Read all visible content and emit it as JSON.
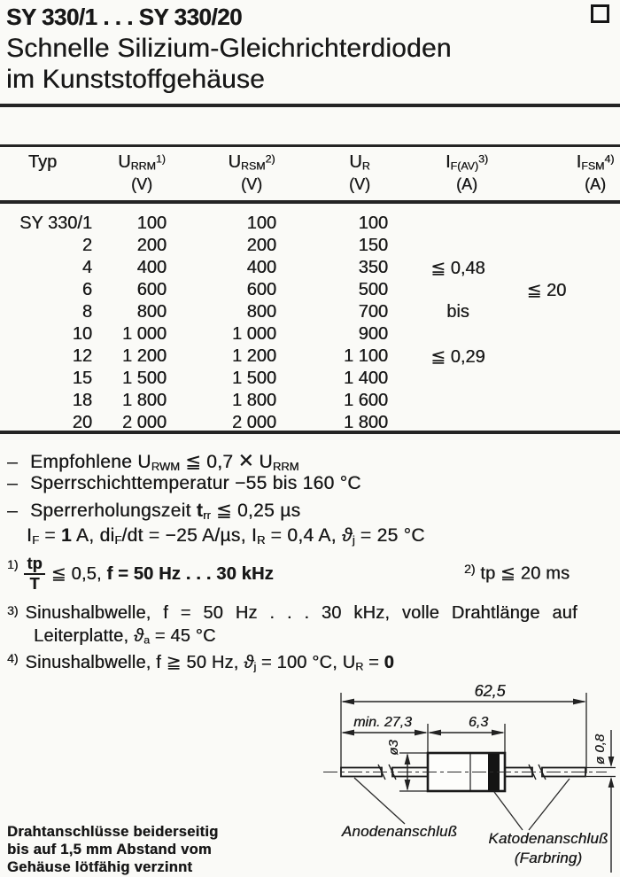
{
  "header": {
    "title": "SY 330/1 . . . SY 330/20",
    "subtitle1": "Schnelle Silizium-Gleichrichterdioden",
    "subtitle2": "im Kunststoffgehäuse"
  },
  "table": {
    "headers": [
      {
        "base": "Typ",
        "sub": "",
        "sup": "",
        "unit": ""
      },
      {
        "base": "U",
        "sub": "RRM",
        "sup": "1)",
        "unit": "(V)"
      },
      {
        "base": "U",
        "sub": "RSM",
        "sup": "2)",
        "unit": "(V)"
      },
      {
        "base": "U",
        "sub": "R",
        "sup": "",
        "unit": "(V)"
      },
      {
        "base": "I",
        "sub": "F(AV)",
        "sup": "3)",
        "unit": "(A)"
      },
      {
        "base": "I",
        "sub": "FSM",
        "sup": "4)",
        "unit": "(A)"
      }
    ],
    "rows": [
      [
        "SY 330/1",
        "100",
        "100",
        "100",
        "",
        ""
      ],
      [
        "2",
        "200",
        "200",
        "150",
        "",
        ""
      ],
      [
        "4",
        "400",
        "400",
        "350",
        "≦ 0,48",
        ""
      ],
      [
        "6",
        "600",
        "600",
        "500",
        "",
        "≦ 20"
      ],
      [
        "8",
        "800",
        "800",
        "700",
        "bis",
        ""
      ],
      [
        "10",
        "1 000",
        "1 000",
        "900",
        "",
        ""
      ],
      [
        "12",
        "1 200",
        "1 200",
        "1 100",
        "≦ 0,29",
        ""
      ],
      [
        "15",
        "1 500",
        "1 500",
        "1 400",
        "",
        ""
      ],
      [
        "18",
        "1 800",
        "1 800",
        "1 600",
        "",
        ""
      ],
      [
        "20",
        "2 000",
        "2 000",
        "1 800",
        "",
        ""
      ]
    ]
  },
  "notes": [
    {
      "dash": "–",
      "segments": [
        {
          "t": "Empfohlene U"
        },
        {
          "t": "RWM",
          "s": "sub"
        },
        {
          "t": " ≦ 0,7 "
        },
        {
          "t": "×",
          "s": "big"
        },
        {
          "t": " U"
        },
        {
          "t": "RRM",
          "s": "sub"
        }
      ]
    },
    {
      "dash": "–",
      "segments": [
        {
          "t": "Sperrschichttemperatur −55 bis 160 °C"
        }
      ]
    },
    {
      "dash": "–",
      "segments": [
        {
          "t": "Sperrerholungszeit "
        },
        {
          "t": "t",
          "s": "b"
        },
        {
          "t": "rr",
          "s": "sub"
        },
        {
          "t": " ≦ 0,25 µs"
        }
      ]
    },
    {
      "dash": "",
      "segments": [
        {
          "t": "I"
        },
        {
          "t": "F",
          "s": "sub"
        },
        {
          "t": " = "
        },
        {
          "t": "1",
          "s": "b"
        },
        {
          "t": " A, di"
        },
        {
          "t": "F",
          "s": "sub"
        },
        {
          "t": "/dt = −25 A/µs, I"
        },
        {
          "t": "R",
          "s": "sub"
        },
        {
          "t": " = 0,4 A, "
        },
        {
          "t": "ϑ",
          "s": "i"
        },
        {
          "t": "j",
          "s": "sub"
        },
        {
          "t": " = 25 °C"
        }
      ]
    }
  ],
  "footnotes": {
    "f1": {
      "sup": "1)",
      "frac_top": "tp",
      "frac_bot": "T",
      "segments": [
        {
          "t": " ≦ 0,5, "
        },
        {
          "t": "f = 50 Hz . . . 30 kHz",
          "s": "b"
        }
      ]
    },
    "f2": {
      "sup": "2)",
      "segments": [
        {
          "t": "tp ≦ 20 ms"
        }
      ]
    },
    "f3": {
      "sup": "3)",
      "line1": [
        {
          "t": "Sinushalbwelle, f = 50 Hz . . . 30 kHz, volle Drahtlänge auf"
        }
      ],
      "line2": [
        {
          "t": "Leiterplatte, "
        },
        {
          "t": "ϑ",
          "s": "i"
        },
        {
          "t": "a",
          "s": "sub"
        },
        {
          "t": " = 45 °C"
        }
      ]
    },
    "f4": {
      "sup": "4)",
      "segments": [
        {
          "t": "Sinushalbwelle, f ≧ 50 Hz, "
        },
        {
          "t": "ϑ",
          "s": "i"
        },
        {
          "t": "j",
          "s": "sub"
        },
        {
          "t": " = 100 °C, U"
        },
        {
          "t": "R",
          "s": "sub"
        },
        {
          "t": " = "
        },
        {
          "t": "0",
          "s": "b"
        }
      ]
    }
  },
  "diagram": {
    "dim_overall": "62,5",
    "dim_lead": "min. 27,3",
    "dim_body": "6,3",
    "dim_body_dia": "ø3",
    "dim_wire_dia": "ø 0,8",
    "label_anode": "Anodenanschluß",
    "label_cathode": "Katodenanschluß",
    "label_cathode2": "(Farbring)"
  },
  "footer": {
    "line1": "Drahtanschlüsse beiderseitig",
    "line2": "bis auf 1,5 mm Abstand vom",
    "line3": "Gehäuse lötfähig verzinnt"
  }
}
